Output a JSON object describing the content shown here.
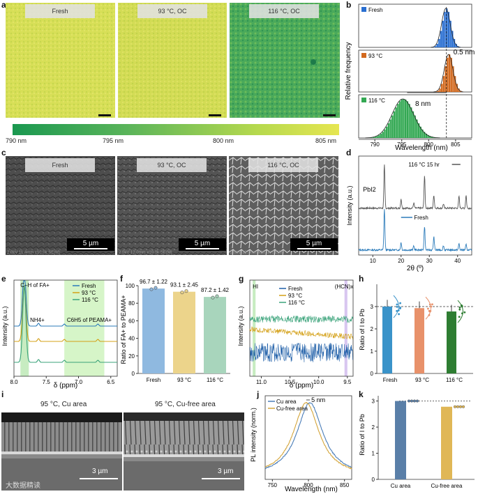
{
  "panel_letters": {
    "a": "a",
    "b": "b",
    "c": "c",
    "d": "d",
    "e": "e",
    "f": "f",
    "g": "g",
    "h": "h",
    "i": "i",
    "j": "j",
    "k": "k"
  },
  "panel_a": {
    "labels": [
      "Fresh",
      "93 °C, OC",
      "116 °C, OC"
    ],
    "colorbar_ticks": [
      "790 nm",
      "795 nm",
      "800 nm",
      "805 nm"
    ],
    "colors": {
      "low": "#1a9850",
      "mid": "#8cc63f",
      "high": "#e6e651"
    }
  },
  "panel_c": {
    "labels": [
      "Fresh",
      "93 °C, OC",
      "116 °C, OC"
    ],
    "scale": "5 µm",
    "footer": [
      "2.0kV 11.4mm x10.0k SE(M)",
      "2.0kV 12.0mm x10.0k SE(M)",
      "2.0kV 12.0mm x10.0k SE(M)"
    ]
  },
  "panel_i": {
    "labels": [
      "95 °C, Cu area",
      "95 °C, Cu-free area"
    ],
    "scale": "3 µm"
  },
  "watermark": "大数据精读",
  "chart_data": [
    {
      "id": "b",
      "type": "histogram",
      "xlabel": "Wavelength (nm)",
      "ylabel": "Relative frequency",
      "xlim": [
        787,
        808
      ],
      "xticks": [
        "790",
        "795",
        "800",
        "805"
      ],
      "series": [
        {
          "name": "Fresh",
          "color": "#2a6fd1",
          "center": 803.2,
          "sigma": 0.8
        },
        {
          "name": "93 °C",
          "color": "#d2691e",
          "center": 803.7,
          "sigma": 0.8
        },
        {
          "name": "116 °C",
          "color": "#33a853",
          "center": 795.2,
          "sigma": 2.0
        }
      ],
      "annotations": [
        "0.5 nm",
        "8 nm"
      ]
    },
    {
      "id": "d",
      "type": "line",
      "xlabel": "2θ (º)",
      "ylabel": "Intensity (a.u.)",
      "xlim": [
        5,
        45
      ],
      "xticks": [
        "10",
        "20",
        "30",
        "40"
      ],
      "series": [
        {
          "name": "116 °C 15 hr",
          "color": "#555555"
        },
        {
          "name": "Fresh",
          "color": "#2b7bba"
        }
      ],
      "peaks": [
        14.1,
        20.0,
        24.5,
        28.3,
        31.6,
        35.0,
        40.5,
        43.0
      ],
      "annotation": "PbI2"
    },
    {
      "id": "e",
      "type": "line",
      "xlabel": "δ (ppm)",
      "ylabel": "Intensity (a.u.)",
      "xlim": [
        8.0,
        6.4
      ],
      "xticks": [
        "8.0",
        "7.5",
        "7.0",
        "6.5"
      ],
      "series": [
        {
          "name": "Fresh",
          "color": "#2b7bba"
        },
        {
          "name": "93 °C",
          "color": "#d4a017"
        },
        {
          "name": "116 °C",
          "color": "#3aa37a"
        }
      ],
      "annotations": [
        "C–H of FA+",
        "NH4+",
        "C6H5 of PEAMA+"
      ]
    },
    {
      "id": "f",
      "type": "bar",
      "ylabel": "Ratio of FA+ to PEAMA+",
      "categories": [
        "Fresh",
        "93 °C",
        "116 °C"
      ],
      "values": [
        96.7,
        93.1,
        87.2
      ],
      "errors": [
        1.22,
        2.45,
        1.42
      ],
      "labels": [
        "96.7 ± 1.22",
        "93.1 ± 2.45",
        "87.2 ± 1.42"
      ],
      "colors": [
        "#8fb9e0",
        "#ecd48b",
        "#a8d5bc"
      ],
      "ylim": [
        0,
        100
      ],
      "yticks": [
        "0",
        "20",
        "40",
        "60",
        "80",
        "100"
      ]
    },
    {
      "id": "g",
      "type": "line",
      "xlabel": "δ (ppm)",
      "ylabel": "Intensity (a.u.)",
      "xlim": [
        11.2,
        9.4
      ],
      "xticks": [
        "11.0",
        "10.5",
        "10.0",
        "9.5"
      ],
      "series": [
        {
          "name": "Fresh",
          "color": "#1f5fa8"
        },
        {
          "name": "93 °C",
          "color": "#d4a017"
        },
        {
          "name": "116 °C",
          "color": "#3aa37a"
        }
      ],
      "annotations": [
        "HI",
        "(HCN)x"
      ]
    },
    {
      "id": "h",
      "type": "bar",
      "ylabel": "Ratio of I to Pb",
      "categories": [
        "Fresh",
        "93 °C",
        "116 °C"
      ],
      "values": [
        3.0,
        2.93,
        2.78
      ],
      "colors": [
        "#3a93c9",
        "#e8916a",
        "#2e7d32"
      ],
      "ylim": [
        0,
        4
      ],
      "yticks": [
        "0",
        "1",
        "2",
        "3"
      ]
    },
    {
      "id": "j",
      "type": "line",
      "xlabel": "Wavelength (nm)",
      "ylabel": "PL intensity (norm.)",
      "xlim": [
        740,
        860
      ],
      "xticks": [
        "750",
        "800",
        "850"
      ],
      "series": [
        {
          "name": "Cu area",
          "color": "#4a7db8",
          "center": 802
        },
        {
          "name": "Cu-free area",
          "color": "#d4a53a",
          "center": 797
        }
      ],
      "annotation": "5 nm"
    },
    {
      "id": "k",
      "type": "bar",
      "ylabel": "Ratio of I to Pb",
      "categories": [
        "Cu area",
        "Cu-free area"
      ],
      "values": [
        3.0,
        2.78
      ],
      "colors": [
        "#5a7fa8",
        "#e0b756"
      ],
      "ylim": [
        0,
        3.2
      ],
      "yticks": [
        "0",
        "1",
        "2",
        "3"
      ]
    }
  ]
}
